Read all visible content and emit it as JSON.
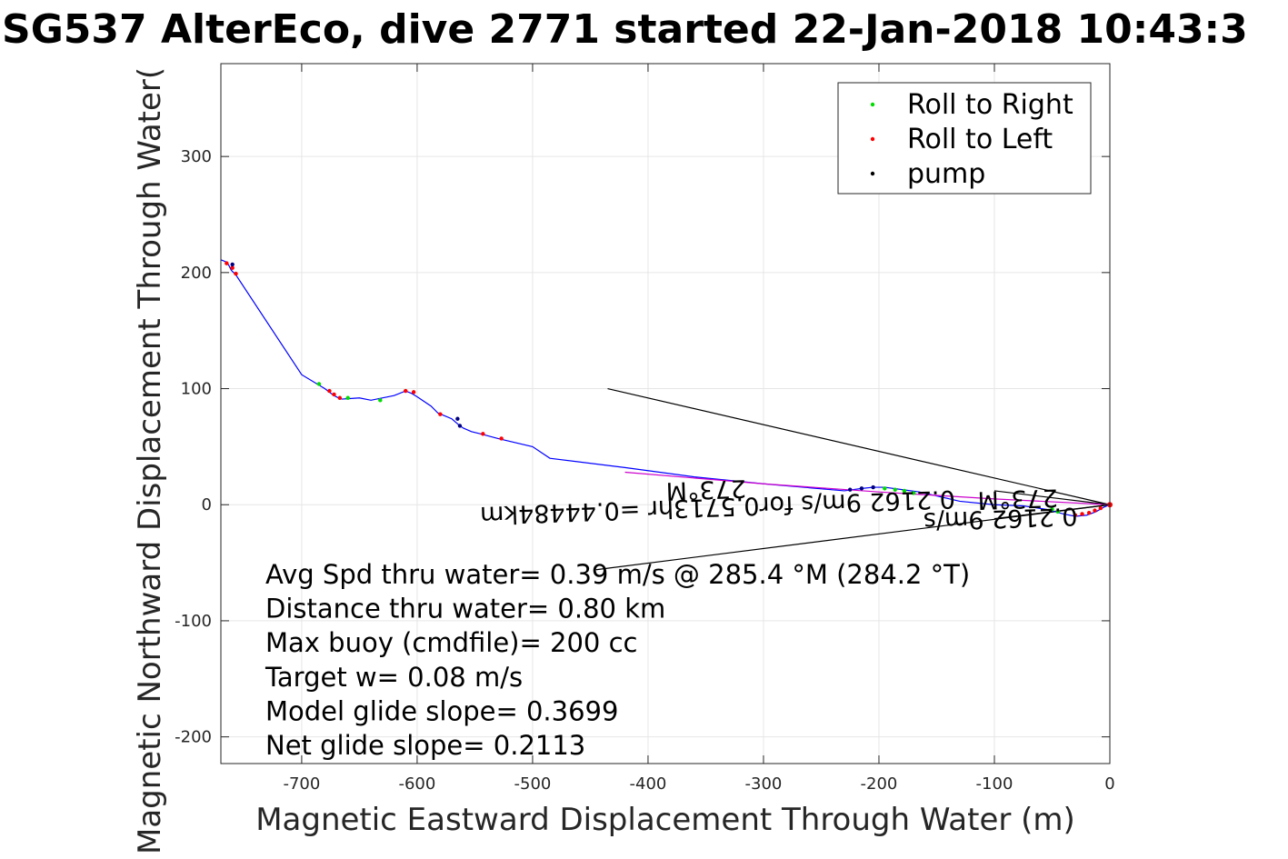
{
  "chart_data": {
    "type": "line",
    "title": "SG537 AlterEco, dive 2771 started 22-Jan-2018 10:43:3",
    "xlabel": "Magnetic Eastward Displacement Through Water (m)",
    "ylabel": "Magnetic Northward Displacement Through Water(",
    "xlim": [
      -770,
      0
    ],
    "ylim": [
      -223,
      380
    ],
    "grid": true,
    "x_ticks": [
      -700,
      -600,
      -500,
      -400,
      -300,
      -200,
      -100,
      0
    ],
    "x_tick_labels": [
      "-700",
      "-600",
      "-500",
      "-400",
      "-300",
      "-200",
      "-100",
      "0"
    ],
    "y_ticks": [
      -200,
      -100,
      0,
      100,
      200,
      300
    ],
    "y_tick_labels": [
      "-200",
      "-100",
      "0",
      "100",
      "200",
      "300"
    ],
    "legend": {
      "placement": "top-right",
      "entries": [
        {
          "label": "Roll to Right",
          "color": "#00dd00"
        },
        {
          "label": "Roll to Left",
          "color": "#ff0000"
        },
        {
          "label": "pump",
          "color": "#000000"
        }
      ]
    },
    "series": [
      {
        "name": "track",
        "color": "#0000ff",
        "x": [
          0,
          -5,
          -12,
          -20,
          -30,
          -40,
          -55,
          -75,
          -100,
          -130,
          -165,
          -180,
          -195,
          -205,
          -215,
          -230,
          -300,
          -360,
          -420,
          -485,
          -500,
          -530,
          -545,
          -553,
          -560,
          -563,
          -570,
          -582,
          -588,
          -600,
          -605,
          -610,
          -620,
          -640,
          -650,
          -665,
          -668,
          -672,
          -676,
          -680,
          -700,
          -757,
          -761,
          -763,
          -765,
          -770
        ],
        "y": [
          0,
          -2,
          -6,
          -9,
          -10,
          -8,
          -4,
          -1,
          0,
          3,
          11,
          13,
          15,
          15,
          14,
          12,
          18,
          24,
          32,
          40,
          50,
          57,
          61,
          63,
          66,
          68,
          74,
          79,
          85,
          93,
          96,
          98,
          94,
          90,
          92,
          91,
          92,
          94,
          97,
          100,
          112,
          198,
          202,
          206,
          209,
          211
        ]
      },
      {
        "name": "heading line",
        "color": "#cc00cc",
        "x": [
          0,
          -100,
          -200,
          -300,
          -420
        ],
        "y": [
          0,
          5,
          11,
          18,
          28
        ]
      }
    ],
    "markers": {
      "roll_right": {
        "x": [
          -45,
          -50,
          -170,
          -178,
          -186,
          -195,
          -632,
          -660,
          -685
        ],
        "y": [
          -6,
          -4,
          10,
          12,
          13,
          14,
          90,
          92,
          104
        ]
      },
      "roll_left": {
        "x": [
          -8,
          -13,
          -18,
          -24,
          -30,
          -580,
          -543,
          -527,
          -603,
          -610,
          -667,
          -672,
          -676,
          -765,
          -760,
          -757
        ],
        "y": [
          -3,
          -5,
          -7,
          -8,
          -9,
          78,
          61,
          57,
          97,
          98,
          92,
          95,
          98,
          208,
          204,
          199
        ]
      },
      "pump": {
        "x": [
          -205,
          -215,
          -225,
          -563,
          -565,
          -760
        ],
        "y": [
          15,
          14,
          13,
          68,
          74,
          207
        ]
      }
    },
    "reference_lines": [
      {
        "x": [
          0,
          -435
        ],
        "y": [
          0,
          100
        ],
        "color": "#000000"
      },
      {
        "x": [
          0,
          -445
        ],
        "y": [
          0,
          -56
        ],
        "color": "#000000"
      },
      {
        "x": [
          0,
          -100
        ],
        "y": [
          0,
          12
        ],
        "color": "#000000"
      },
      {
        "x": [
          0,
          -100
        ],
        "y": [
          0,
          -12
        ],
        "color": "#000000"
      }
    ],
    "annotations": [
      {
        "text": "273°M",
        "x": -350,
        "y": 20
      },
      {
        "text": "0.2162 9m/s for0.5713hr =0.44484km",
        "x": -340,
        "y": 5
      },
      {
        "text": "273°M",
        "x": -80,
        "y": 12
      },
      {
        "text": "0.2162 9m/s",
        "x": -95,
        "y": -5
      }
    ],
    "stats": [
      "Avg Spd thru water=  0.39 m/s @ 285.4 °M (284.2 °T)",
      "Distance thru water=  0.80 km",
      "Max buoy (cmdfile)= 200 cc",
      "Target w= 0.08 m/s",
      "Model glide slope= 0.3699",
      "Net glide slope= 0.2113"
    ]
  }
}
